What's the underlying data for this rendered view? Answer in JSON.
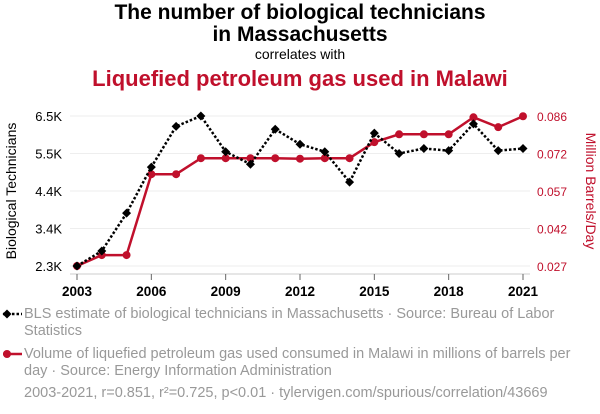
{
  "header": {
    "title": "The number of biological technicians in Massachusetts",
    "title_line1": "The number of biological technicians",
    "title_line2": "in Massachusetts",
    "subtitle": "correlates with",
    "title2": "Liquefied petroleum gas used in Malawi"
  },
  "colors": {
    "series1": "#000000",
    "series2": "#c0102c"
  },
  "chart_data": {
    "type": "line",
    "x": [
      2003,
      2004,
      2005,
      2006,
      2007,
      2008,
      2009,
      2010,
      2011,
      2012,
      2013,
      2014,
      2015,
      2016,
      2017,
      2018,
      2019,
      2020,
      2021
    ],
    "xticks": [
      "2003",
      "2006",
      "2009",
      "2012",
      "2015",
      "2018",
      "2021"
    ],
    "ylabel_left": "Biological Technicians",
    "ylabel_right": "Million Barrels/Day",
    "yticks_left": [
      "2.3K",
      "3.4K",
      "4.4K",
      "5.5K",
      "6.5K"
    ],
    "yticks_right": [
      "0.027",
      "0.042",
      "0.057",
      "0.072",
      "0.086"
    ],
    "ylim_left": [
      2300,
      6500
    ],
    "ylim_right": [
      0.027,
      0.086
    ],
    "grid": true,
    "series": [
      {
        "name": "BLS estimate of biological technicians in Massachusetts · Source: Bureau of Labor Statistics",
        "axis": "left",
        "style": "dotted-diamond",
        "values": [
          2300,
          2720,
          3780,
          5070,
          6210,
          6500,
          5500,
          5150,
          6130,
          5710,
          5500,
          4650,
          6020,
          5450,
          5590,
          5530,
          6280,
          5530,
          5590
        ]
      },
      {
        "name": "Volume of liquefied petroleum gas used consumed in Malawi in millions of barrels per day · Source: Energy Information Administration",
        "axis": "right",
        "style": "solid-circle",
        "values": [
          0.027,
          0.0313,
          0.0313,
          0.0631,
          0.0631,
          0.0694,
          0.0694,
          0.0694,
          0.0694,
          0.0692,
          0.0694,
          0.0694,
          0.0757,
          0.0788,
          0.0788,
          0.0788,
          0.0855,
          0.0816,
          0.0859
        ]
      }
    ]
  },
  "legend": {
    "item1": "BLS estimate of biological technicians in Massachusetts · Source: Bureau of Labor Statistics",
    "item2": "Volume of liquefied petroleum gas used consumed in Malawi in millions of barrels per day · Source: Energy Information Administration"
  },
  "footer": "2003-2021, r=0.851, r²=0.725, p<0.01 · tylervigen.com/spurious/correlation/43669"
}
